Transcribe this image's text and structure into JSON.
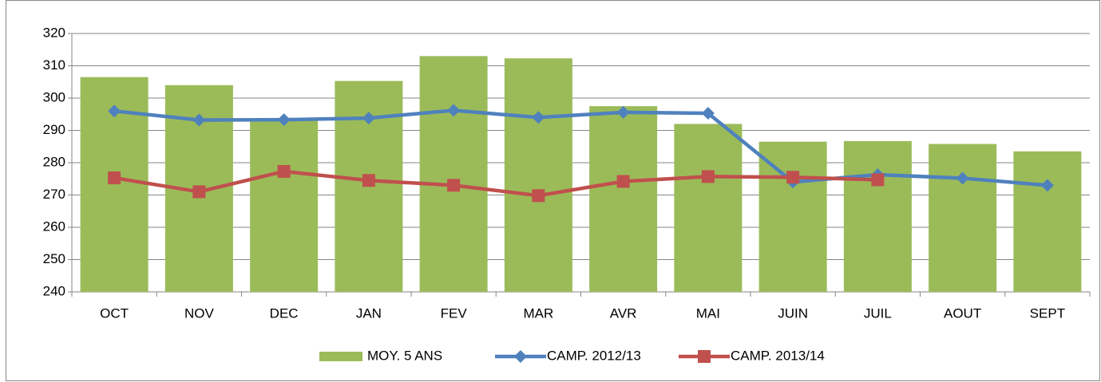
{
  "chart_data": {
    "type": "bar",
    "categories": [
      "OCT",
      "NOV",
      "DEC",
      "JAN",
      "FEV",
      "MAR",
      "AVR",
      "MAI",
      "JUIN",
      "JUIL",
      "AOUT",
      "SEPT"
    ],
    "series": [
      {
        "name": "MOY. 5 ANS",
        "type": "bar",
        "color": "#9bbb59",
        "values": [
          306.5,
          304,
          293,
          305.3,
          313,
          312.3,
          297.5,
          292,
          286.5,
          286.7,
          285.8,
          283.5
        ]
      },
      {
        "name": "CAMP. 2012/13",
        "type": "line",
        "marker": "diamond",
        "color": "#4f81bd",
        "values": [
          296,
          293.2,
          293.3,
          293.8,
          296.2,
          294,
          295.6,
          295.3,
          274,
          276.3,
          275.2,
          273
        ]
      },
      {
        "name": "CAMP. 2013/14",
        "type": "line",
        "marker": "square",
        "color": "#c0504d",
        "values": [
          275.3,
          271,
          277.3,
          274.5,
          273,
          269.8,
          274.2,
          275.7,
          275.5,
          274.7,
          null,
          null
        ]
      }
    ],
    "ylim": [
      240,
      320
    ],
    "yticks": [
      240,
      250,
      260,
      270,
      280,
      290,
      300,
      310,
      320
    ],
    "grid": true,
    "legend": "bottom"
  }
}
